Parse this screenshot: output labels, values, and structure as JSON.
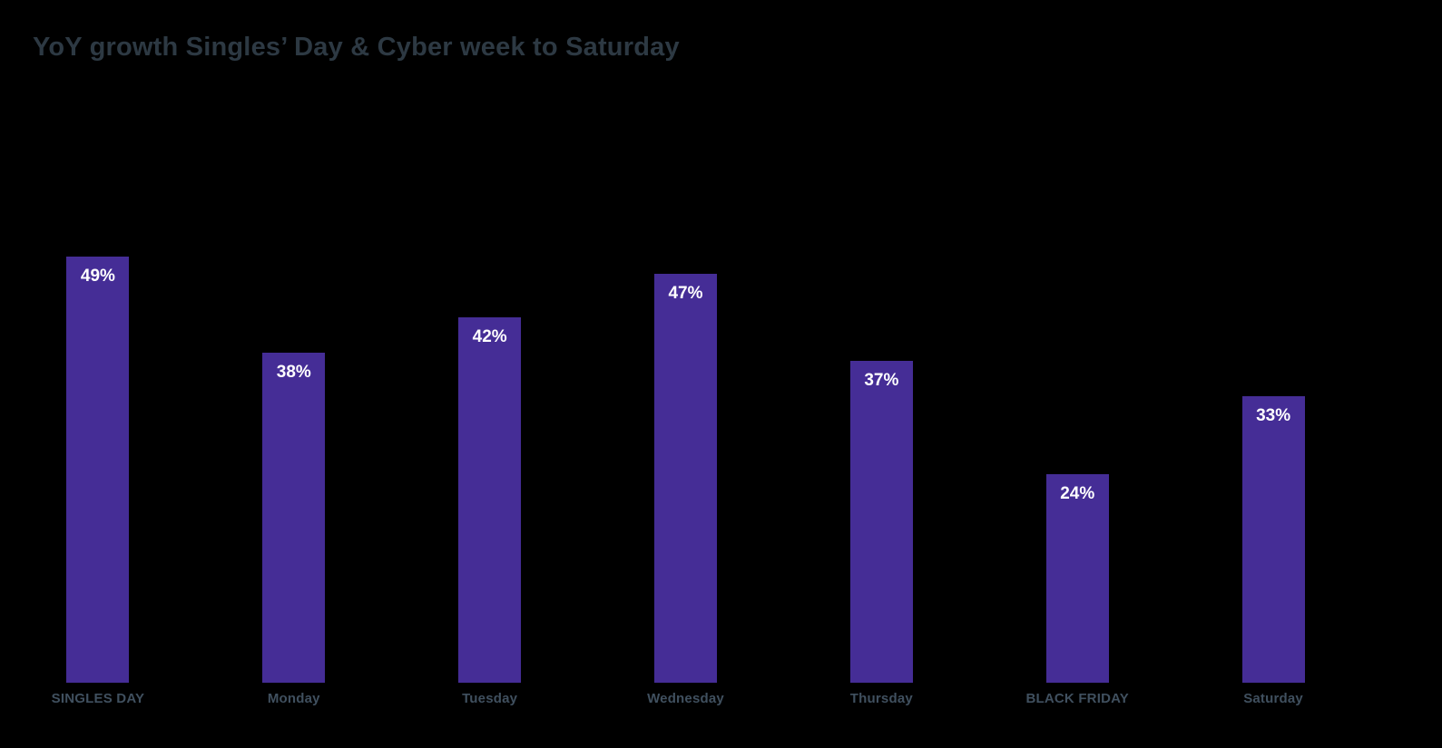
{
  "chart_data": {
    "type": "bar",
    "title": "YoY growth Singles’ Day & Cyber week to Saturday",
    "categories": [
      "SINGLES DAY",
      "Monday",
      "Tuesday",
      "Wednesday",
      "Thursday",
      "BLACK FRIDAY",
      "Saturday"
    ],
    "values": [
      49,
      38,
      42,
      47,
      37,
      24,
      33
    ],
    "value_labels": [
      "49%",
      "38%",
      "42%",
      "47%",
      "37%",
      "24%",
      "33%"
    ],
    "xlabel": "",
    "ylabel": "",
    "ylim": [
      0,
      53
    ],
    "grid": false,
    "legend_position": "none",
    "value_label_position": "inside-top",
    "colors": {
      "bar": "#452D96",
      "value_label": "#FFFFFF",
      "title": "#2D3943",
      "axis_label": "#40505F",
      "background": "#000000"
    }
  }
}
